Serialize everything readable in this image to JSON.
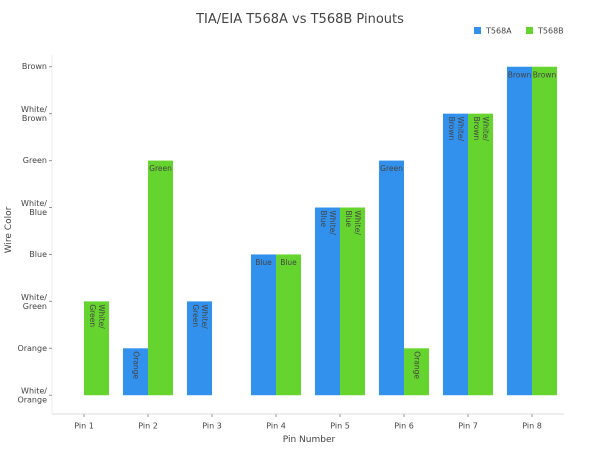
{
  "chart_data": {
    "type": "bar",
    "title": "TIA/EIA T568A vs T568B Pinouts",
    "x_label": "Pin Number",
    "y_label": "Wire Color",
    "categories": [
      "Pin 1",
      "Pin 2",
      "Pin 3",
      "Pin 4",
      "Pin 5",
      "Pin 6",
      "Pin 7",
      "Pin 8"
    ],
    "series": [
      {
        "name": "T568A",
        "color": "#3291ec",
        "values": [
          0,
          1,
          2,
          3,
          4,
          5,
          6,
          7
        ],
        "value_labels": [
          null,
          "Orange",
          "White/\nGreen",
          "Blue",
          "White/\nBlue",
          "Green",
          "White/\nBrown",
          "Brown"
        ]
      },
      {
        "name": "T568B",
        "color": "#66d42f",
        "values": [
          2,
          5,
          0,
          3,
          4,
          1,
          6,
          7
        ],
        "value_labels": [
          "White/\nGreen",
          "Green",
          null,
          "Blue",
          "White/\nBlue",
          "Orange",
          "White/\nBrown",
          "Brown"
        ]
      }
    ],
    "ylim": [
      -0.4,
      7.25
    ],
    "yticks": [
      {
        "value": 0,
        "label": "White/\nOrange"
      },
      {
        "value": 1,
        "label": "Orange"
      },
      {
        "value": 2,
        "label": "White/\nGreen"
      },
      {
        "value": 3,
        "label": "Blue"
      },
      {
        "value": 4,
        "label": "White/\nBlue"
      },
      {
        "value": 5,
        "label": "Green"
      },
      {
        "value": 6,
        "label": "White/\nBrown"
      },
      {
        "value": 7,
        "label": "Brown"
      }
    ],
    "legend": "top-right"
  }
}
